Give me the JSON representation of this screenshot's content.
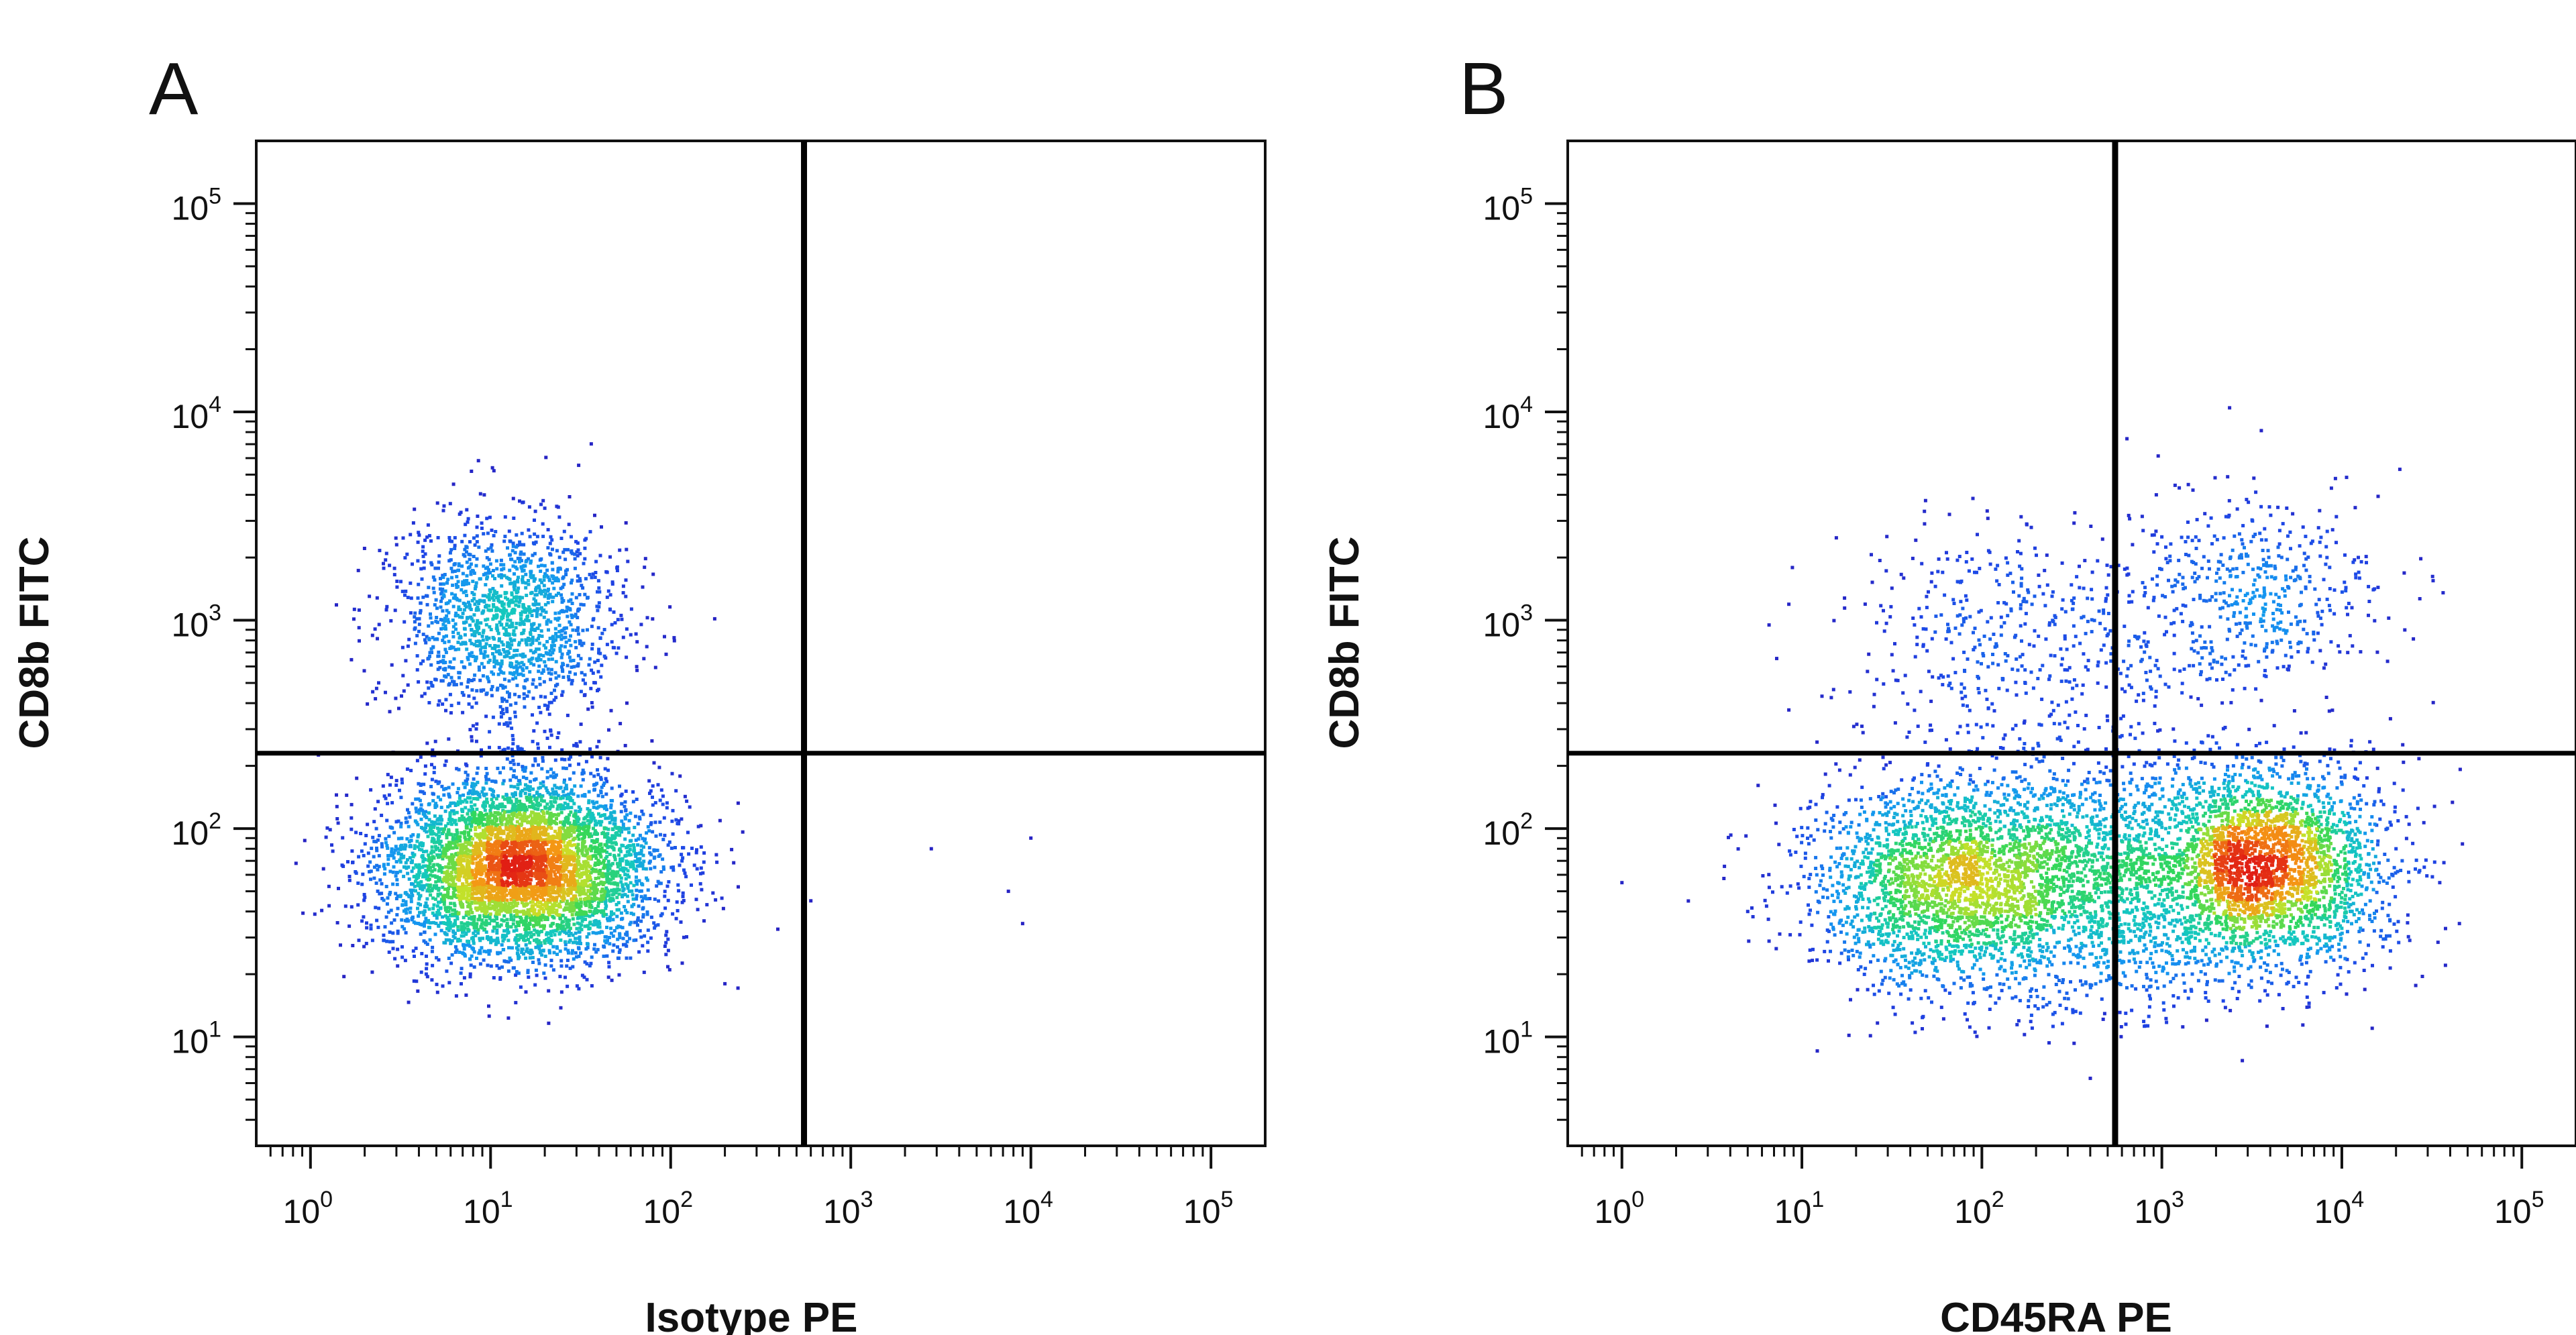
{
  "chart_data": [
    {
      "type": "scatter",
      "panel_label": "A",
      "xlabel": "Isotype PE",
      "ylabel": "CD8b FITC",
      "x_scale": "log",
      "y_scale": "log",
      "xlim": [
        0.5,
        200000
      ],
      "ylim": [
        3,
        200000
      ],
      "x_ticks": [
        {
          "value": 1,
          "label": "10",
          "exp": "0"
        },
        {
          "value": 10,
          "label": "10",
          "exp": "1"
        },
        {
          "value": 100,
          "label": "10",
          "exp": "2"
        },
        {
          "value": 1000,
          "label": "10",
          "exp": "3"
        },
        {
          "value": 10000,
          "label": "10",
          "exp": "4"
        },
        {
          "value": 100000,
          "label": "10",
          "exp": "5"
        }
      ],
      "y_ticks": [
        {
          "value": 10,
          "label": "10",
          "exp": "1"
        },
        {
          "value": 100,
          "label": "10",
          "exp": "2"
        },
        {
          "value": 1000,
          "label": "10",
          "exp": "3"
        },
        {
          "value": 10000,
          "label": "10",
          "exp": "4"
        },
        {
          "value": 100000,
          "label": "10",
          "exp": "5"
        }
      ],
      "quadrant_gate": {
        "x": 550,
        "y": 230
      },
      "populations": [
        {
          "name": "",
          "cx": 15,
          "cy": 65,
          "sx_dec": 0.38,
          "sy_dec": 0.22,
          "n": 5200
        },
        {
          "name": "",
          "cx": 12,
          "cy": 1000,
          "sx_dec": 0.32,
          "sy_dec": 0.24,
          "n": 1500
        }
      ],
      "outliers": [
        [
          2800,
          80
        ],
        [
          10000,
          90
        ],
        [
          600,
          45
        ],
        [
          9000,
          35
        ],
        [
          7500,
          50
        ],
        [
          200,
          18
        ]
      ],
      "grid": false
    },
    {
      "type": "scatter",
      "panel_label": "B",
      "xlabel": "CD45RA PE",
      "ylabel": "CD8b FITC",
      "x_scale": "log",
      "y_scale": "log",
      "xlim": [
        0.5,
        200000
      ],
      "ylim": [
        3,
        200000
      ],
      "x_ticks": [
        {
          "value": 1,
          "label": "10",
          "exp": "0"
        },
        {
          "value": 10,
          "label": "10",
          "exp": "1"
        },
        {
          "value": 100,
          "label": "10",
          "exp": "2"
        },
        {
          "value": 1000,
          "label": "10",
          "exp": "3"
        },
        {
          "value": 10000,
          "label": "10",
          "exp": "4"
        },
        {
          "value": 100000,
          "label": "10",
          "exp": "5"
        }
      ],
      "y_ticks": [
        {
          "value": 10,
          "label": "10",
          "exp": "1"
        },
        {
          "value": 100,
          "label": "10",
          "exp": "2"
        },
        {
          "value": 1000,
          "label": "10",
          "exp": "3"
        },
        {
          "value": 10000,
          "label": "10",
          "exp": "4"
        },
        {
          "value": 100000,
          "label": "10",
          "exp": "5"
        }
      ],
      "quadrant_gate": {
        "x": 550,
        "y": 230
      },
      "populations": [
        {
          "name": "",
          "cx": 70,
          "cy": 55,
          "sx_dec": 0.42,
          "sy_dec": 0.25,
          "n": 2600
        },
        {
          "name": "",
          "cx": 3800,
          "cy": 65,
          "sx_dec": 0.33,
          "sy_dec": 0.24,
          "n": 2800
        },
        {
          "name": "",
          "cx": 500,
          "cy": 55,
          "sx_dec": 0.35,
          "sy_dec": 0.3,
          "n": 1200
        },
        {
          "name": "",
          "cx": 150,
          "cy": 800,
          "sx_dec": 0.5,
          "sy_dec": 0.3,
          "n": 500
        },
        {
          "name": "",
          "cx": 3000,
          "cy": 1300,
          "sx_dec": 0.35,
          "sy_dec": 0.25,
          "n": 500
        }
      ],
      "outliers": [
        [
          1,
          55
        ],
        [
          20000,
          80
        ],
        [
          45000,
          35
        ],
        [
          35000,
          55
        ],
        [
          5,
          40
        ]
      ],
      "grid": false
    }
  ]
}
